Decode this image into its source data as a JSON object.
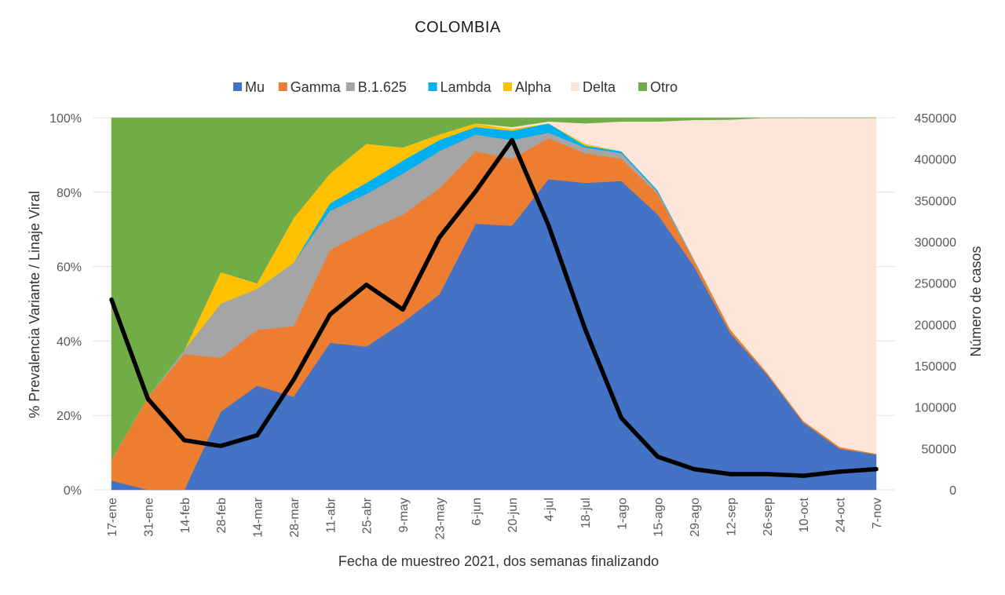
{
  "chart_data": {
    "type": "area",
    "stacked": true,
    "percent_stacked": true,
    "title": "COLOMBIA",
    "xlabel": "Fecha de muestreo 2021, dos semanas finalizando",
    "ylabel": "% Prevalencia Variante / Linaje Viral",
    "y2label": "Número de casos",
    "legend_position": "top",
    "ylim": [
      0,
      100
    ],
    "y_ticks": [
      "0%",
      "20%",
      "40%",
      "60%",
      "80%",
      "100%"
    ],
    "y_tick_values": [
      0,
      20,
      40,
      60,
      80,
      100
    ],
    "y2lim": [
      0,
      450000
    ],
    "y2_ticks": [
      "0",
      "50000",
      "100000",
      "150000",
      "200000",
      "250000",
      "300000",
      "350000",
      "400000",
      "450000"
    ],
    "y2_tick_values": [
      0,
      50000,
      100000,
      150000,
      200000,
      250000,
      300000,
      350000,
      400000,
      450000
    ],
    "categories": [
      "17-ene",
      "31-ene",
      "14-feb",
      "28-feb",
      "14-mar",
      "28-mar",
      "11-abr",
      "25-abr",
      "9-may",
      "23-may",
      "6-jun",
      "20-jun",
      "4-jul",
      "18-jul",
      "1-ago",
      "15-ago",
      "29-ago",
      "12-sep",
      "26-sep",
      "10-oct",
      "24-oct",
      "7-nov"
    ],
    "series": [
      {
        "name": "Mu",
        "color": "#4472C4",
        "values": [
          2.5,
          0,
          0,
          21,
          28,
          25,
          39.5,
          38.5,
          45,
          52.5,
          71.5,
          71,
          83.5,
          82.5,
          83,
          74,
          60,
          42,
          31,
          18,
          11,
          9.5
        ]
      },
      {
        "name": "Gamma",
        "color": "#ED7D31",
        "values": [
          5.5,
          25,
          36.5,
          14.5,
          15,
          19,
          25,
          31,
          29,
          28.5,
          19.5,
          18,
          11,
          8,
          6,
          5.5,
          1.5,
          1,
          0.5,
          0.5,
          0.5,
          0.2
        ]
      },
      {
        "name": "B.1.625",
        "color": "#A5A5A5",
        "values": [
          0,
          0,
          1,
          14.5,
          11,
          17,
          10.5,
          10,
          11,
          10,
          4.5,
          5,
          1.5,
          1.5,
          1.5,
          0.5,
          0.2,
          0,
          0,
          0,
          0,
          0
        ]
      },
      {
        "name": "Lambda",
        "color": "#00B0F0",
        "values": [
          0,
          0,
          0,
          0,
          0,
          0,
          2,
          3,
          3.5,
          3,
          2,
          2.5,
          2.5,
          0.5,
          0.5,
          0.5,
          0.2,
          0,
          0,
          0,
          0,
          0
        ]
      },
      {
        "name": "Alpha",
        "color": "#FFC000",
        "values": [
          0,
          0,
          0,
          8.5,
          1.5,
          12,
          8,
          10.5,
          3.5,
          1.5,
          1,
          0.5,
          0,
          0.5,
          0,
          0,
          0,
          0,
          0,
          0,
          0,
          0
        ]
      },
      {
        "name": "Delta",
        "color": "#FDE5DA",
        "values": [
          0,
          0,
          0,
          0,
          0,
          0,
          0,
          0,
          0,
          0,
          0,
          0.5,
          0.5,
          5.5,
          8,
          18.5,
          37.5,
          56.5,
          68.5,
          81.5,
          88.5,
          90.3
        ]
      },
      {
        "name": "Otro",
        "color": "#70AD47",
        "values": [
          92,
          75,
          62.5,
          41.5,
          44.5,
          27,
          15,
          7,
          8,
          4.5,
          1.5,
          2.5,
          1,
          1.5,
          1,
          1,
          0.6,
          0.5,
          0,
          0,
          0,
          0
        ]
      }
    ],
    "line_series": {
      "name": "Número de casos",
      "color": "#000000",
      "axis": "y2",
      "values": [
        230000,
        110000,
        60000,
        53000,
        66000,
        133000,
        212000,
        248000,
        218000,
        305000,
        361000,
        423000,
        320000,
        195000,
        87000,
        40000,
        25000,
        19000,
        19000,
        17000,
        22000,
        25000
      ]
    }
  }
}
